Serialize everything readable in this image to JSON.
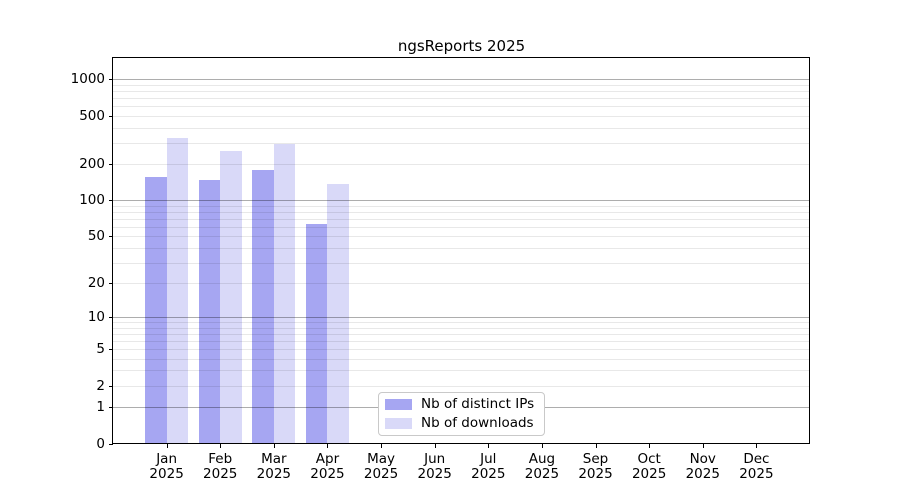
{
  "title": "ngsReports 2025",
  "chart_data": {
    "type": "bar",
    "title": "ngsReports 2025",
    "scale": "log1p",
    "categories": [
      "Jan",
      "Feb",
      "Mar",
      "Apr",
      "May",
      "Jun",
      "Jul",
      "Aug",
      "Sep",
      "Oct",
      "Nov",
      "Dec"
    ],
    "year_label": "2025",
    "series": [
      {
        "name": "Nb of distinct IPs",
        "color": "#a6a6f2",
        "values": [
          156,
          147,
          177,
          63,
          null,
          null,
          null,
          null,
          null,
          null,
          null,
          null
        ]
      },
      {
        "name": "Nb of downloads",
        "color": "#d9d9f8",
        "values": [
          326,
          255,
          291,
          137,
          null,
          null,
          null,
          null,
          null,
          null,
          null,
          null
        ]
      }
    ],
    "yticks": [
      0,
      1,
      2,
      5,
      10,
      20,
      50,
      100,
      200,
      500,
      1000
    ],
    "ylim": [
      0,
      1500
    ],
    "grid": true,
    "legend_position": "lower center",
    "colors": {
      "background": "#ffffff",
      "spine": "#000000",
      "major_grid": "rgba(0,0,0,0.32)",
      "minor_grid": "rgba(0,0,0,0.09)",
      "text": "#000000",
      "legend_border": "#c9c9c9"
    }
  }
}
